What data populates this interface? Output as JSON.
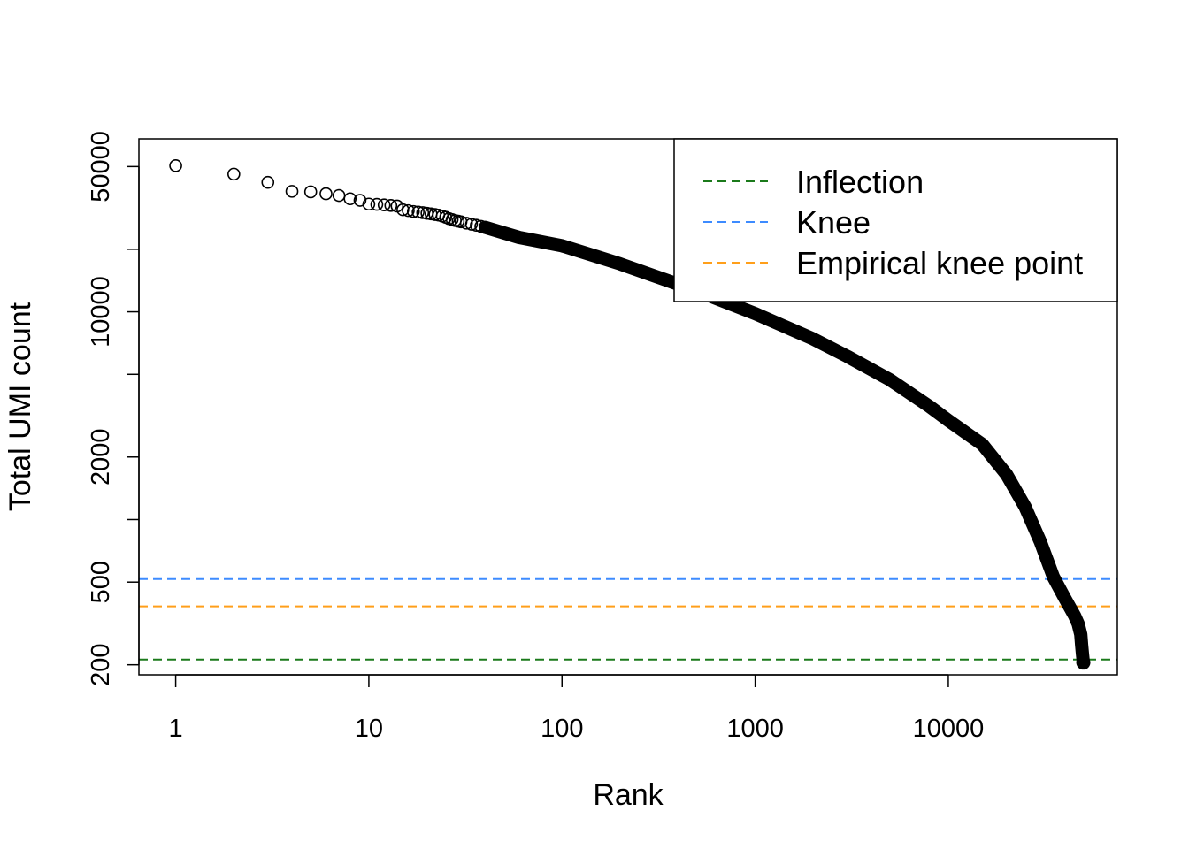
{
  "chart_data": {
    "type": "scatter",
    "title": "",
    "xlabel": "Rank",
    "ylabel": "Total UMI count",
    "x_scale": "log",
    "y_scale": "log",
    "xlim": [
      0.645,
      75000
    ],
    "ylim": [
      179,
      68000
    ],
    "x_ticks": [
      {
        "value": 1,
        "label": "1"
      },
      {
        "value": 10,
        "label": "10"
      },
      {
        "value": 100,
        "label": "100"
      },
      {
        "value": 1000,
        "label": "1000"
      },
      {
        "value": 10000,
        "label": "10000"
      }
    ],
    "y_ticks": [
      {
        "value": 200,
        "label": "200"
      },
      {
        "value": 500,
        "label": "500"
      },
      {
        "value": 1000,
        "label": ""
      },
      {
        "value": 2000,
        "label": "2000"
      },
      {
        "value": 5000,
        "label": ""
      },
      {
        "value": 10000,
        "label": "10000"
      },
      {
        "value": 20000,
        "label": ""
      },
      {
        "value": 50000,
        "label": "50000"
      }
    ],
    "points": [
      [
        1,
        50500
      ],
      [
        2,
        46000
      ],
      [
        3,
        42000
      ],
      [
        4,
        38000
      ],
      [
        5,
        37800
      ],
      [
        6,
        37000
      ],
      [
        7,
        36300
      ],
      [
        8,
        35000
      ],
      [
        9,
        34400
      ],
      [
        10,
        33000
      ],
      [
        11,
        32900
      ],
      [
        12,
        32700
      ],
      [
        13,
        32500
      ],
      [
        14,
        32300
      ],
      [
        15,
        31000
      ],
      [
        16,
        30700
      ],
      [
        17,
        30400
      ],
      [
        18,
        30200
      ],
      [
        19,
        30000
      ],
      [
        20,
        29800
      ],
      [
        21,
        29600
      ],
      [
        22,
        29400
      ],
      [
        23,
        29200
      ],
      [
        24,
        28900
      ],
      [
        25,
        28500
      ],
      [
        26,
        28100
      ],
      [
        27,
        27800
      ],
      [
        28,
        27500
      ],
      [
        29,
        27300
      ],
      [
        30,
        27100
      ],
      [
        32,
        26700
      ],
      [
        34,
        26400
      ],
      [
        36,
        26100
      ],
      [
        38,
        25800
      ],
      [
        40,
        25500
      ]
    ],
    "curve": [
      [
        40,
        25500
      ],
      [
        60,
        22800
      ],
      [
        100,
        20800
      ],
      [
        150,
        18500
      ],
      [
        200,
        17000
      ],
      [
        300,
        14900
      ],
      [
        500,
        12600
      ],
      [
        1000,
        9800
      ],
      [
        2000,
        7400
      ],
      [
        3000,
        6100
      ],
      [
        5000,
        4700
      ],
      [
        8000,
        3500
      ],
      [
        10000,
        3000
      ],
      [
        15000,
        2300
      ],
      [
        20000,
        1650
      ],
      [
        25000,
        1150
      ],
      [
        30000,
        780
      ],
      [
        35000,
        530
      ],
      [
        40000,
        420
      ],
      [
        45000,
        345
      ],
      [
        47000,
        315
      ],
      [
        48500,
        280
      ],
      [
        49000,
        250
      ],
      [
        49500,
        225
      ],
      [
        50000,
        205
      ]
    ],
    "series": [
      {
        "name": "Inflection",
        "value": 212,
        "color": "#1b7a1b",
        "style": "dashed"
      },
      {
        "name": "Knee",
        "value": 517,
        "color": "#3d8bff",
        "style": "dashed"
      },
      {
        "name": "Empirical knee point",
        "value": 382,
        "color": "#ff9f1a",
        "style": "dashed"
      }
    ],
    "legend_position": "top-right",
    "grid": false
  }
}
